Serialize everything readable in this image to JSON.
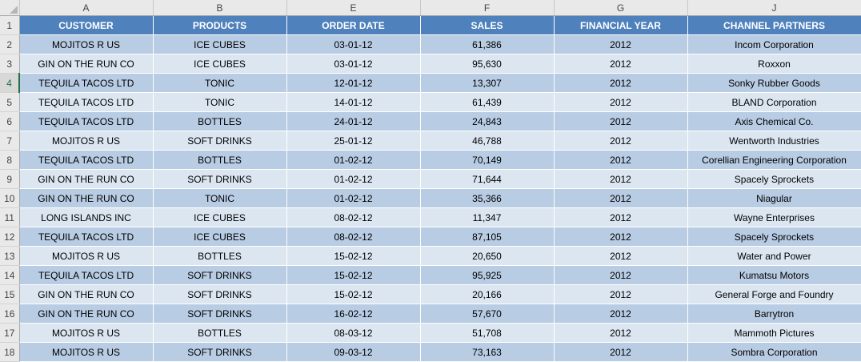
{
  "columns": [
    "A",
    "B",
    "E",
    "F",
    "G",
    "J"
  ],
  "row_numbers": [
    "1",
    "2",
    "3",
    "4",
    "5",
    "6",
    "7",
    "8",
    "9",
    "10",
    "11",
    "12",
    "13",
    "14",
    "15",
    "16",
    "17",
    "18"
  ],
  "headers": [
    "CUSTOMER",
    "PRODUCTS",
    "ORDER DATE",
    "SALES",
    "FINANCIAL YEAR",
    "CHANNEL PARTNERS"
  ],
  "rows": [
    [
      "MOJITOS R US",
      "ICE CUBES",
      "03-01-12",
      "61,386",
      "2012",
      "Incom Corporation"
    ],
    [
      "GIN ON THE RUN CO",
      "ICE CUBES",
      "03-01-12",
      "95,630",
      "2012",
      "Roxxon"
    ],
    [
      "TEQUILA TACOS LTD",
      "TONIC",
      "12-01-12",
      "13,307",
      "2012",
      "Sonky Rubber Goods"
    ],
    [
      "TEQUILA TACOS LTD",
      "TONIC",
      "14-01-12",
      "61,439",
      "2012",
      "BLAND Corporation"
    ],
    [
      "TEQUILA TACOS LTD",
      "BOTTLES",
      "24-01-12",
      "24,843",
      "2012",
      "Axis Chemical Co."
    ],
    [
      "MOJITOS R US",
      "SOFT DRINKS",
      "25-01-12",
      "46,788",
      "2012",
      "Wentworth Industries"
    ],
    [
      "TEQUILA TACOS LTD",
      "BOTTLES",
      "01-02-12",
      "70,149",
      "2012",
      "Corellian Engineering Corporation"
    ],
    [
      "GIN ON THE RUN CO",
      "SOFT DRINKS",
      "01-02-12",
      "71,644",
      "2012",
      "Spacely Sprockets"
    ],
    [
      "GIN ON THE RUN CO",
      "TONIC",
      "01-02-12",
      "35,366",
      "2012",
      "Niagular"
    ],
    [
      "LONG ISLANDS INC",
      "ICE CUBES",
      "08-02-12",
      "11,347",
      "2012",
      "Wayne Enterprises"
    ],
    [
      "TEQUILA TACOS LTD",
      "ICE CUBES",
      "08-02-12",
      "87,105",
      "2012",
      "Spacely Sprockets"
    ],
    [
      "MOJITOS R US",
      "BOTTLES",
      "15-02-12",
      "20,650",
      "2012",
      "Water and Power"
    ],
    [
      "TEQUILA TACOS LTD",
      "SOFT DRINKS",
      "15-02-12",
      "95,925",
      "2012",
      "Kumatsu Motors"
    ],
    [
      "GIN ON THE RUN CO",
      "SOFT DRINKS",
      "15-02-12",
      "20,166",
      "2012",
      "General Forge and Foundry"
    ],
    [
      "GIN ON THE RUN CO",
      "SOFT DRINKS",
      "16-02-12",
      "57,670",
      "2012",
      "Barrytron"
    ],
    [
      "MOJITOS R US",
      "BOTTLES",
      "08-03-12",
      "51,708",
      "2012",
      "Mammoth Pictures"
    ],
    [
      "MOJITOS R US",
      "SOFT DRINKS",
      "09-03-12",
      "73,163",
      "2012",
      "Sombra Corporation"
    ]
  ],
  "selected_row": "4",
  "colors": {
    "header_fill": "#4f81bd",
    "band_dark": "#b8cce4",
    "band_light": "#dce6f1",
    "selected_row_header": "#217346"
  }
}
